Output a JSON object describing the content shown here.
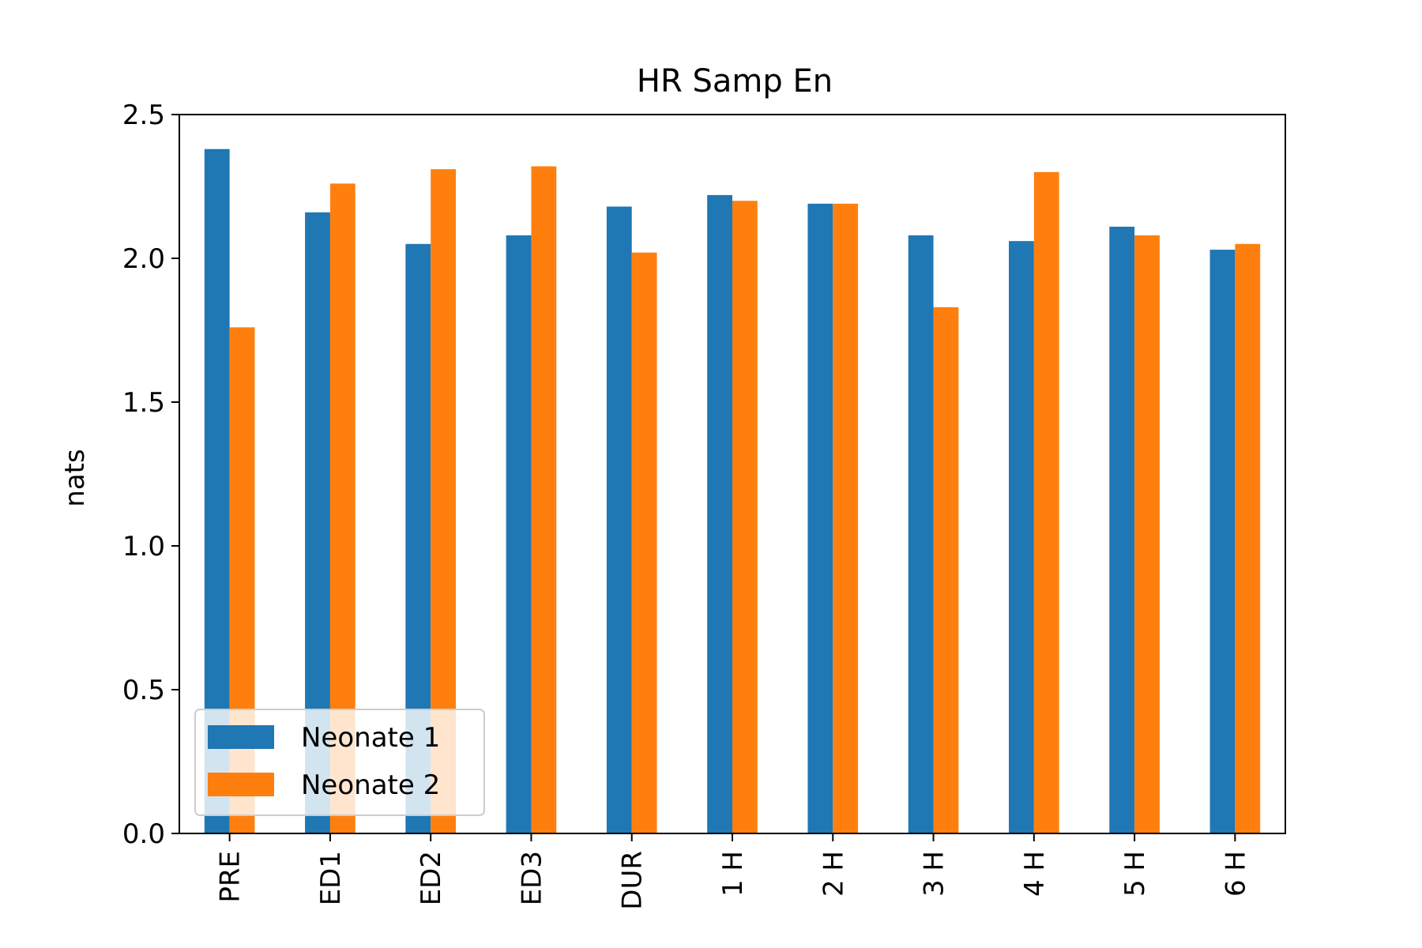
{
  "chart_data": {
    "type": "bar",
    "title": "HR Samp En",
    "xlabel": "",
    "ylabel": "nats",
    "ylim": [
      0,
      2.5
    ],
    "yticks": [
      "0.0",
      "0.5",
      "1.0",
      "1.5",
      "2.0",
      "2.5"
    ],
    "grid": false,
    "legend_position": "lower-left",
    "categories": [
      "PRE",
      "ED1",
      "ED2",
      "ED3",
      "DUR",
      "1 H",
      "2 H",
      "3 H",
      "4 H",
      "5 H",
      "6 H"
    ],
    "series": [
      {
        "name": "Neonate 1",
        "color": "#1f77b4",
        "values": [
          2.38,
          2.16,
          2.05,
          2.08,
          2.18,
          2.22,
          2.19,
          2.08,
          2.06,
          2.11,
          2.03
        ]
      },
      {
        "name": "Neonate 2",
        "color": "#ff7f0e",
        "values": [
          1.76,
          2.26,
          2.31,
          2.32,
          2.02,
          2.2,
          2.19,
          1.83,
          2.3,
          2.08,
          2.05
        ]
      }
    ]
  }
}
